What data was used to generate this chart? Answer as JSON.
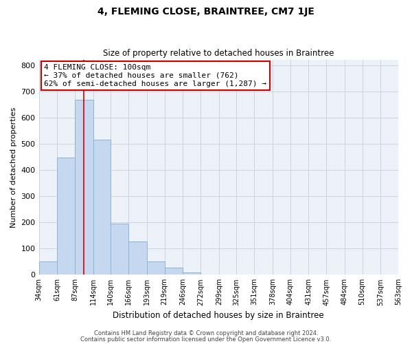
{
  "title": "4, FLEMING CLOSE, BRAINTREE, CM7 1JE",
  "subtitle": "Size of property relative to detached houses in Braintree",
  "xlabel": "Distribution of detached houses by size in Braintree",
  "ylabel": "Number of detached properties",
  "bar_edges": [
    34,
    61,
    87,
    114,
    140,
    166,
    193,
    219,
    246,
    272,
    299,
    325,
    351,
    378,
    404,
    431,
    457,
    484,
    510,
    537,
    563
  ],
  "bar_heights": [
    50,
    447,
    667,
    516,
    196,
    127,
    50,
    27,
    8,
    0,
    0,
    0,
    0,
    0,
    0,
    0,
    0,
    0,
    0,
    0
  ],
  "bar_color": "#c5d8ef",
  "bar_edge_color": "#89b3d9",
  "marker_x": 100,
  "marker_color": "#cc0000",
  "ylim": [
    0,
    820
  ],
  "xlim": [
    34,
    563
  ],
  "annotation_line1": "4 FLEMING CLOSE: 100sqm",
  "annotation_line2": "← 37% of detached houses are smaller (762)",
  "annotation_line3": "62% of semi-detached houses are larger (1,287) →",
  "annotation_box_color": "#ffffff",
  "annotation_box_edge_color": "#cc0000",
  "footnote1": "Contains HM Land Registry data © Crown copyright and database right 2024.",
  "footnote2": "Contains public sector information licensed under the Open Government Licence v3.0.",
  "tick_labels": [
    "34sqm",
    "61sqm",
    "87sqm",
    "114sqm",
    "140sqm",
    "166sqm",
    "193sqm",
    "219sqm",
    "246sqm",
    "272sqm",
    "299sqm",
    "325sqm",
    "351sqm",
    "378sqm",
    "404sqm",
    "431sqm",
    "457sqm",
    "484sqm",
    "510sqm",
    "537sqm",
    "563sqm"
  ],
  "yticks": [
    0,
    100,
    200,
    300,
    400,
    500,
    600,
    700,
    800
  ],
  "grid_color": "#ccd4e0",
  "background_color": "#edf1f8",
  "title_fontsize": 10,
  "subtitle_fontsize": 8.5,
  "ylabel_fontsize": 8,
  "xlabel_fontsize": 8.5,
  "tick_fontsize": 7,
  "ytick_fontsize": 8,
  "footnote_fontsize": 6,
  "annotation_fontsize": 8
}
